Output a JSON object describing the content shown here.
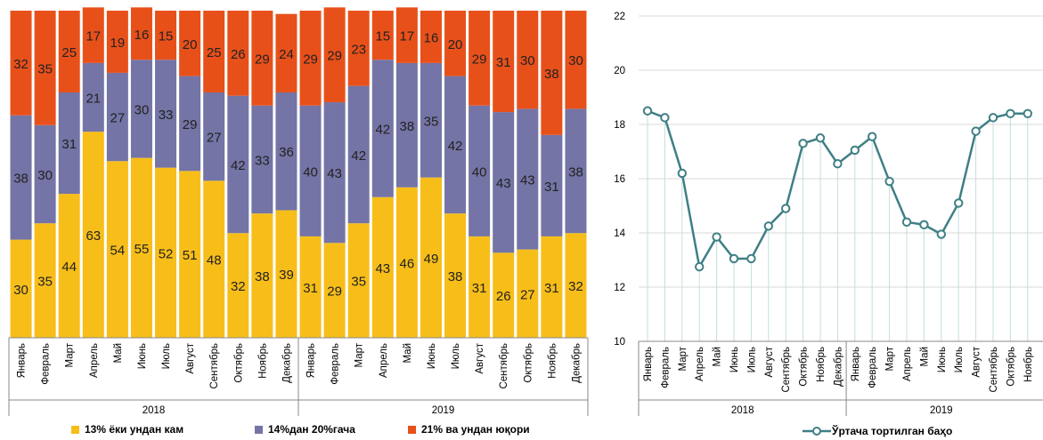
{
  "chart_data": [
    {
      "type": "bar",
      "stacked": true,
      "categories": [
        "Январь",
        "Февраль",
        "Март",
        "Апрель",
        "Май",
        "Июнь",
        "Июль",
        "Август",
        "Сентябрь",
        "Октябрь",
        "Ноябрь",
        "Декабрь",
        "Январь",
        "Февраль",
        "Март",
        "Апрель",
        "Май",
        "Июнь",
        "Июль",
        "Август",
        "Сентябрь",
        "Октябрь",
        "Ноябрь",
        "Декабрь"
      ],
      "groups": [
        {
          "label": "2018",
          "start": 0,
          "count": 12
        },
        {
          "label": "2019",
          "start": 12,
          "count": 12
        }
      ],
      "series": [
        {
          "name": "13% ёки ундан кам",
          "color": "#F7BE1A",
          "values": [
            30,
            35,
            44,
            63,
            54,
            55,
            52,
            51,
            48,
            32,
            38,
            39,
            31,
            29,
            35,
            43,
            46,
            49,
            38,
            31,
            26,
            27,
            31,
            32
          ]
        },
        {
          "name": "14%дан 20%гача",
          "color": "#7474A6",
          "values": [
            38,
            30,
            31,
            21,
            27,
            30,
            33,
            29,
            27,
            42,
            33,
            36,
            40,
            43,
            42,
            42,
            38,
            35,
            42,
            40,
            43,
            43,
            31,
            38
          ]
        },
        {
          "name": "21% ва ундан юқори",
          "color": "#E8501A",
          "values": [
            32,
            35,
            25,
            17,
            19,
            16,
            15,
            20,
            25,
            26,
            29,
            24,
            29,
            29,
            23,
            15,
            17,
            16,
            20,
            29,
            31,
            30,
            38,
            30
          ]
        }
      ],
      "ylim": [
        0,
        100
      ],
      "legend": "bottom"
    },
    {
      "type": "line",
      "categories": [
        "Январь",
        "Февраль",
        "Март",
        "Апрель",
        "Май",
        "Июнь",
        "Июль",
        "Август",
        "Сентябрь",
        "Октябрь",
        "Ноябрь",
        "Декабрь",
        "Январь",
        "Февраль",
        "Март",
        "Апрель",
        "Май",
        "Июнь",
        "Июль",
        "Август",
        "Сентябрь",
        "Октябрь",
        "Ноябрь"
      ],
      "groups": [
        {
          "label": "2018",
          "start": 0,
          "count": 12
        },
        {
          "label": "2019",
          "start": 12,
          "count": 11
        }
      ],
      "series": [
        {
          "name": "Ўртача тортилган баҳо",
          "color": "#3F7F85",
          "values": [
            18.5,
            18.25,
            16.2,
            12.75,
            13.85,
            13.05,
            13.05,
            14.25,
            14.9,
            17.3,
            17.5,
            16.55,
            17.05,
            17.55,
            15.9,
            14.4,
            14.3,
            13.95,
            15.1,
            17.75,
            18.25,
            18.4,
            18.4
          ]
        }
      ],
      "ylim": [
        10,
        22
      ],
      "yticks": [
        10,
        12,
        14,
        16,
        18,
        20,
        22
      ],
      "grid": true,
      "legend": "bottom"
    }
  ]
}
